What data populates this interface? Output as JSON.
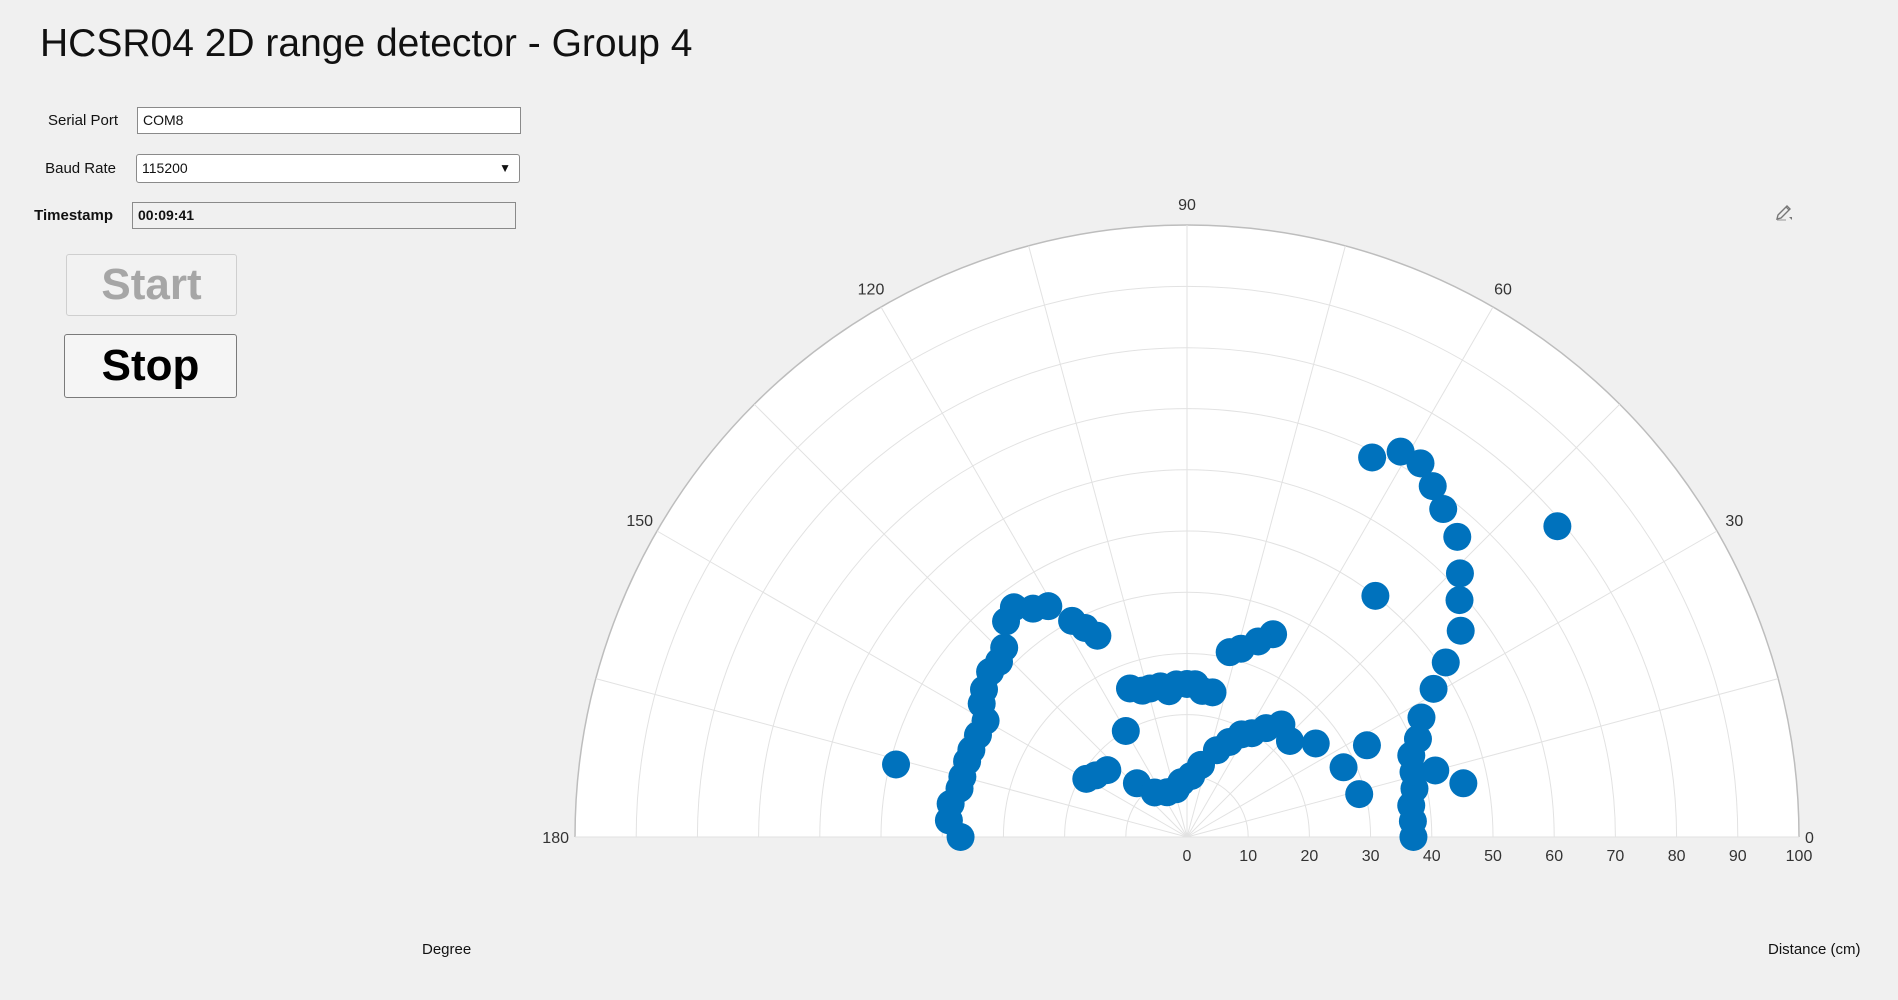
{
  "app": {
    "title": "HCSR04 2D range detector - Group 4"
  },
  "controls": {
    "serial_port_label": "Serial Port",
    "serial_port_value": "COM8",
    "baud_rate_label": "Baud Rate",
    "baud_rate_value": "115200",
    "timestamp_label": "Timestamp",
    "timestamp_value": "00:09:41",
    "start_label": "Start",
    "stop_label": "Stop"
  },
  "labels": {
    "degree": "Degree",
    "distance": "Distance (cm)"
  },
  "icons": {
    "edit": "edit-pen-icon",
    "dropdown": "chevron-down-icon"
  },
  "chart_data": {
    "type": "scatter",
    "coordinate_system": "polar",
    "theta_range": [
      0,
      180
    ],
    "r_range": [
      0,
      100
    ],
    "theta_ticks": [
      0,
      30,
      60,
      90,
      120,
      150,
      180
    ],
    "r_ticks": [
      0,
      10,
      20,
      30,
      40,
      50,
      60,
      70,
      80,
      90,
      100
    ],
    "grid": true,
    "marker_color": "#0072BD",
    "points": [
      {
        "theta": 0,
        "r": 37
      },
      {
        "theta": 4,
        "r": 37
      },
      {
        "theta": 8,
        "r": 37
      },
      {
        "theta": 12,
        "r": 38
      },
      {
        "theta": 16,
        "r": 38.5
      },
      {
        "theta": 20,
        "r": 39
      },
      {
        "theta": 23,
        "r": 41
      },
      {
        "theta": 27,
        "r": 43
      },
      {
        "theta": 31,
        "r": 47
      },
      {
        "theta": 34,
        "r": 51
      },
      {
        "theta": 37,
        "r": 56
      },
      {
        "theta": 41,
        "r": 59
      },
      {
        "theta": 44,
        "r": 62
      },
      {
        "theta": 48,
        "r": 66
      },
      {
        "theta": 52,
        "r": 68
      },
      {
        "theta": 55,
        "r": 70
      },
      {
        "theta": 58,
        "r": 72
      },
      {
        "theta": 61,
        "r": 72
      },
      {
        "theta": 64,
        "r": 69
      },
      {
        "theta": 67,
        "r": 36
      },
      {
        "theta": 70,
        "r": 34
      },
      {
        "theta": 74,
        "r": 32
      },
      {
        "theta": 77,
        "r": 31
      },
      {
        "theta": 80,
        "r": 24
      },
      {
        "theta": 84,
        "r": 24
      },
      {
        "theta": 87,
        "r": 25
      },
      {
        "theta": 90,
        "r": 25
      },
      {
        "theta": 94,
        "r": 25
      },
      {
        "theta": 97,
        "r": 24
      },
      {
        "theta": 100,
        "r": 25
      },
      {
        "theta": 104,
        "r": 25
      },
      {
        "theta": 107,
        "r": 25
      },
      {
        "theta": 111,
        "r": 26
      },
      {
        "theta": 114,
        "r": 36
      },
      {
        "theta": 116,
        "r": 38
      },
      {
        "theta": 118,
        "r": 40
      },
      {
        "theta": 121,
        "r": 44
      },
      {
        "theta": 124,
        "r": 45
      },
      {
        "theta": 127,
        "r": 47
      },
      {
        "theta": 130,
        "r": 46
      },
      {
        "theta": 134,
        "r": 43
      },
      {
        "theta": 137,
        "r": 42
      },
      {
        "theta": 140,
        "r": 42
      },
      {
        "theta": 144,
        "r": 41
      },
      {
        "theta": 147,
        "r": 40
      },
      {
        "theta": 150,
        "r": 38
      },
      {
        "theta": 154,
        "r": 38
      },
      {
        "theta": 158,
        "r": 38
      },
      {
        "theta": 161,
        "r": 38
      },
      {
        "theta": 165,
        "r": 38
      },
      {
        "theta": 168,
        "r": 38
      },
      {
        "theta": 172,
        "r": 39
      },
      {
        "theta": 176,
        "r": 39
      },
      {
        "theta": 180,
        "r": 37
      },
      {
        "theta": 166,
        "r": 49
      },
      {
        "theta": 150,
        "r": 19
      },
      {
        "theta": 146,
        "r": 18
      },
      {
        "theta": 140,
        "r": 17
      },
      {
        "theta": 133,
        "r": 12
      },
      {
        "theta": 126,
        "r": 9
      },
      {
        "theta": 114,
        "r": 8
      },
      {
        "theta": 103,
        "r": 8
      },
      {
        "theta": 96,
        "r": 9
      },
      {
        "theta": 86,
        "r": 10
      },
      {
        "theta": 79,
        "r": 12
      },
      {
        "theta": 71,
        "r": 15
      },
      {
        "theta": 66,
        "r": 17
      },
      {
        "theta": 62,
        "r": 19
      },
      {
        "theta": 58,
        "r": 20
      },
      {
        "theta": 54,
        "r": 22
      },
      {
        "theta": 50,
        "r": 24
      },
      {
        "theta": 43,
        "r": 23
      },
      {
        "theta": 36,
        "r": 26
      },
      {
        "theta": 27,
        "r": 33
      },
      {
        "theta": 24,
        "r": 28
      },
      {
        "theta": 14,
        "r": 29
      },
      {
        "theta": 15,
        "r": 42
      },
      {
        "theta": 11,
        "r": 46
      },
      {
        "theta": 40,
        "r": 79
      },
      {
        "theta": 52,
        "r": 50
      },
      {
        "theta": 120,
        "r": 20
      }
    ]
  }
}
